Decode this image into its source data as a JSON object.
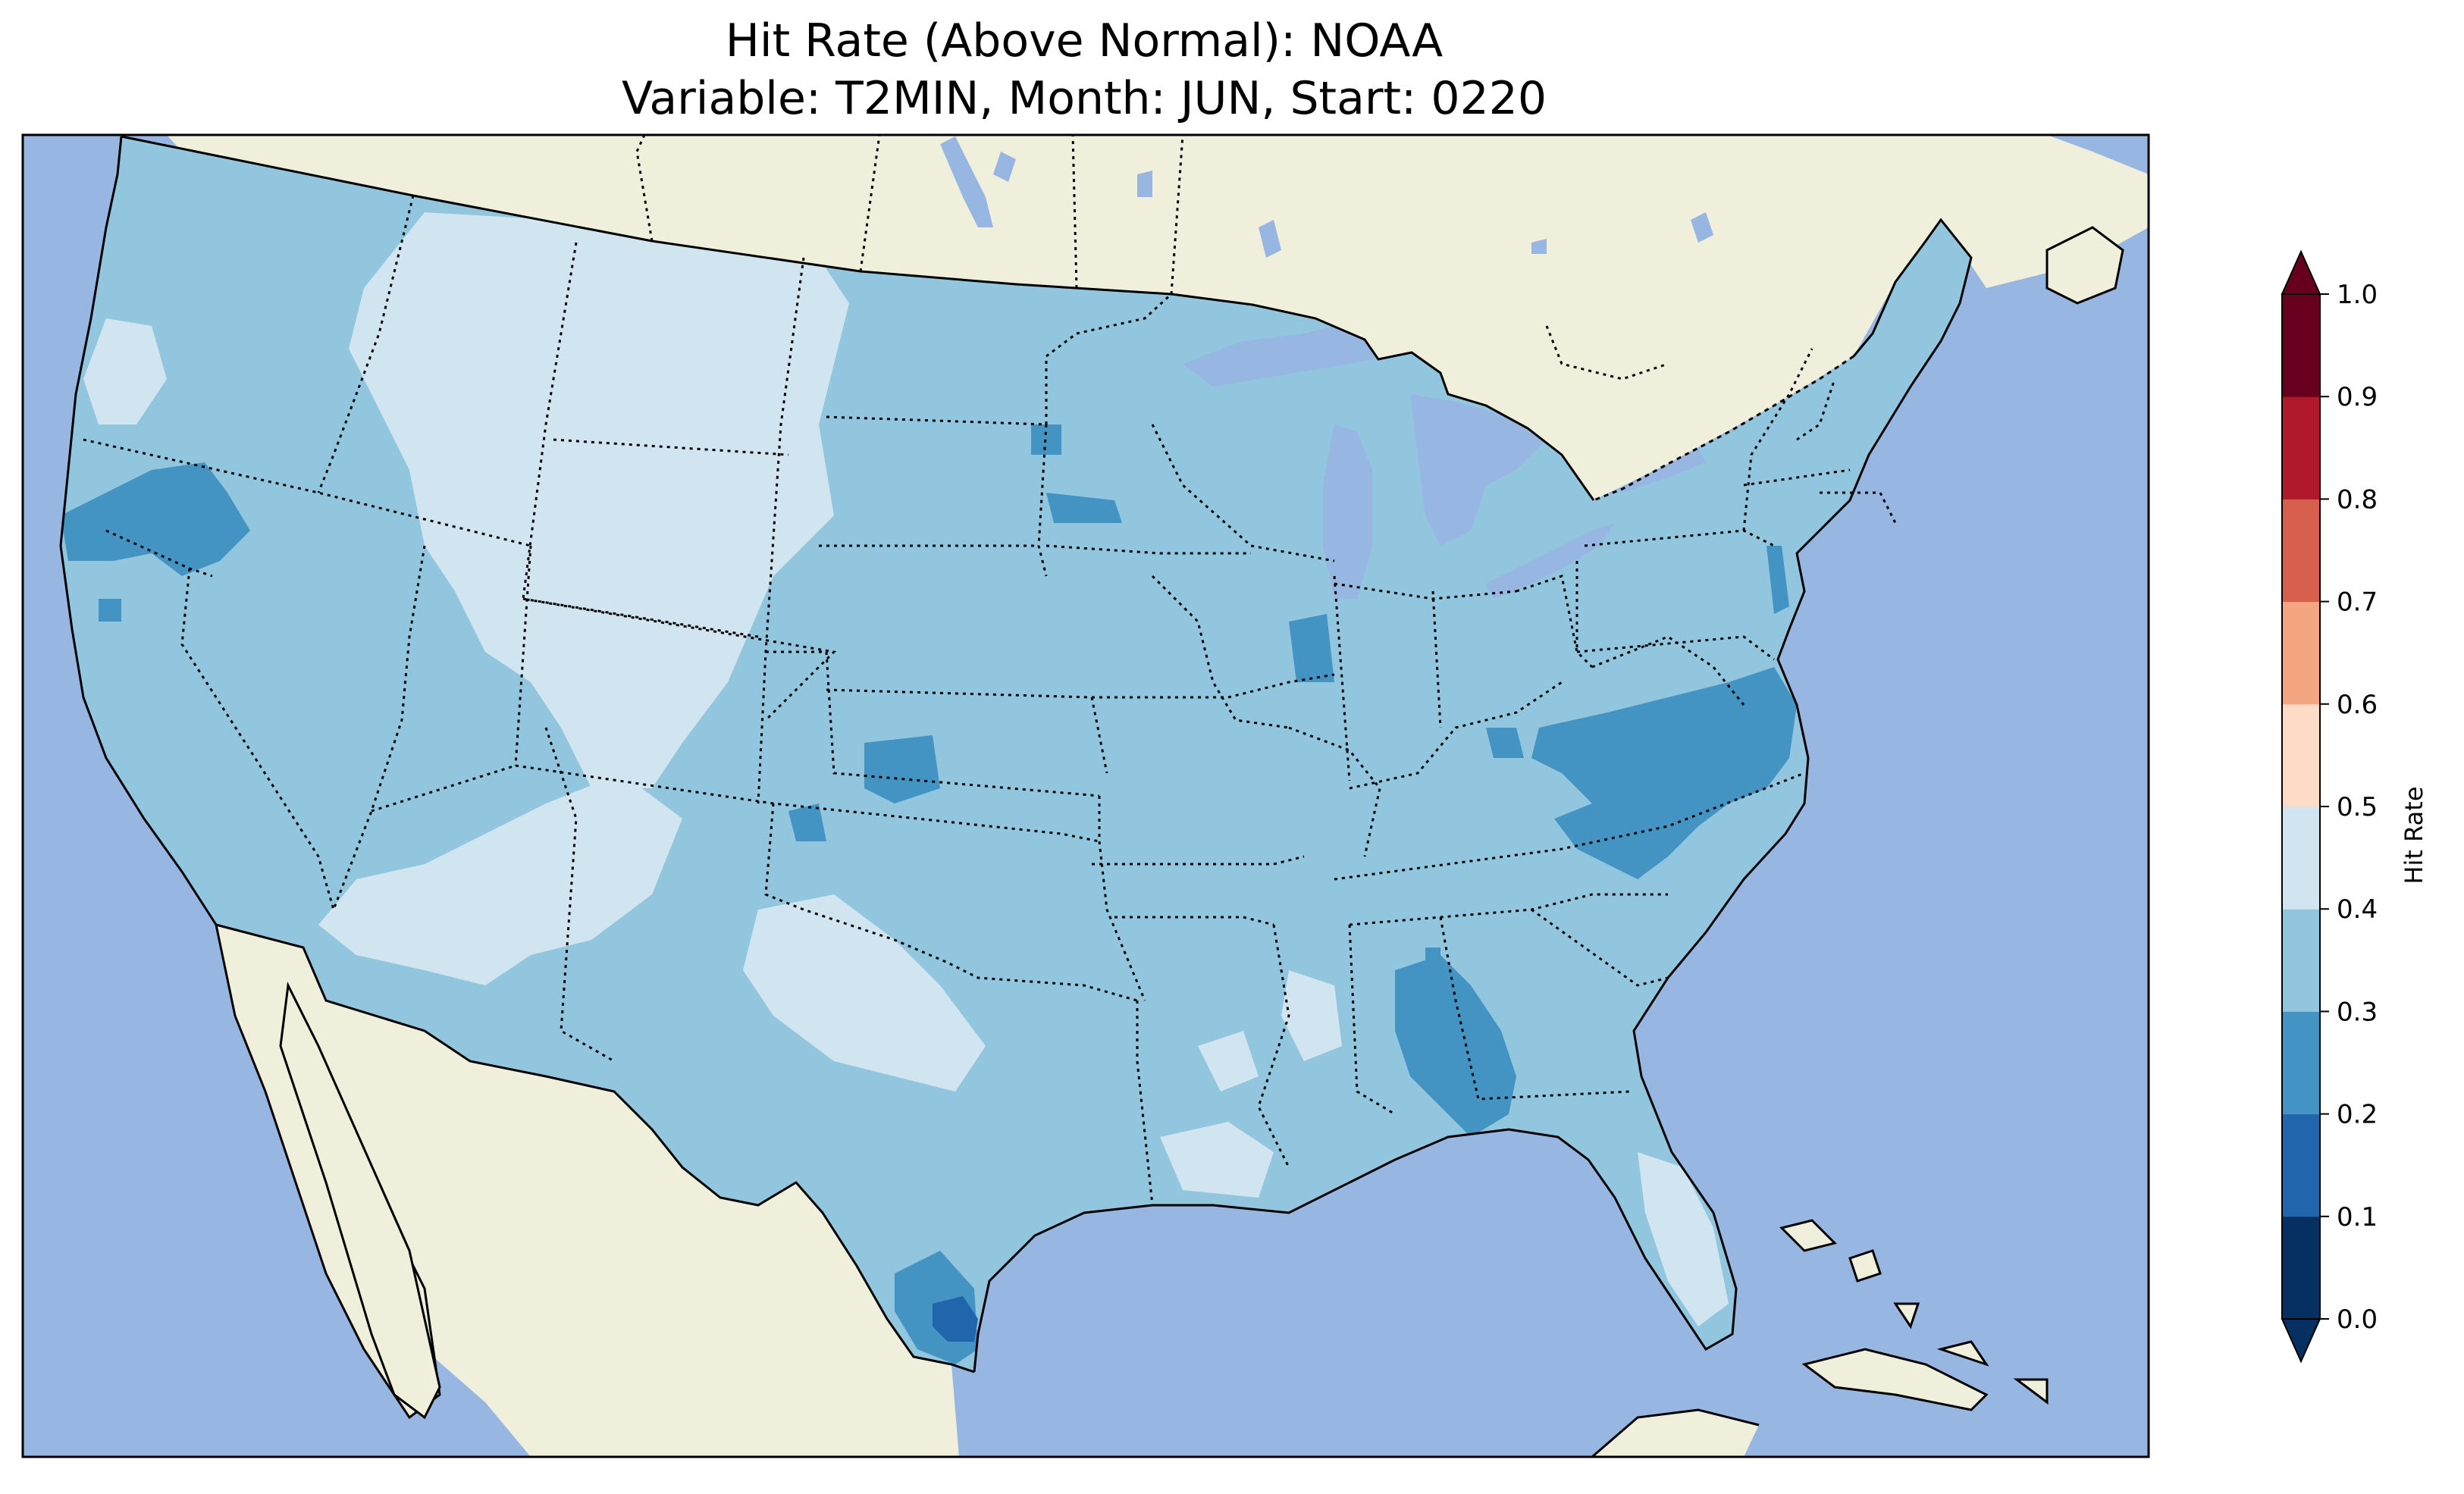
{
  "title": {
    "line1": "Hit Rate (Above Normal): NOAA",
    "line2": "Variable: T2MIN, Month: JUN, Start: 0220"
  },
  "colorbar": {
    "label": "Hit Rate",
    "ticks": [
      "0.0",
      "0.1",
      "0.2",
      "0.3",
      "0.4",
      "0.5",
      "0.6",
      "0.7",
      "0.8",
      "0.9",
      "1.0"
    ],
    "colors": [
      "#053061",
      "#2166ac",
      "#4393c3",
      "#92c5de",
      "#d1e5f0",
      "#fddbc7",
      "#f4a582",
      "#d6604d",
      "#b2182b",
      "#67001f"
    ],
    "extend": "both"
  },
  "map": {
    "ocean_color": "#97b6e1",
    "land_color": "#efefdb",
    "region": "CONUS",
    "dominant_class": "0.3-0.4",
    "notable_low_areas": [
      "Northern California (0.2-0.3)",
      "North Carolina / Virginia (0.2-0.3)",
      "Alabama (0.2-0.3)",
      "South Texas (0.1-0.3)"
    ],
    "notable_high_areas": [
      "Montana / Wyoming / Colorado / Utah (0.4-0.5)",
      "New Mexico / West Texas (0.4-0.5)",
      "Florida peninsula (0.4-0.5)"
    ]
  }
}
